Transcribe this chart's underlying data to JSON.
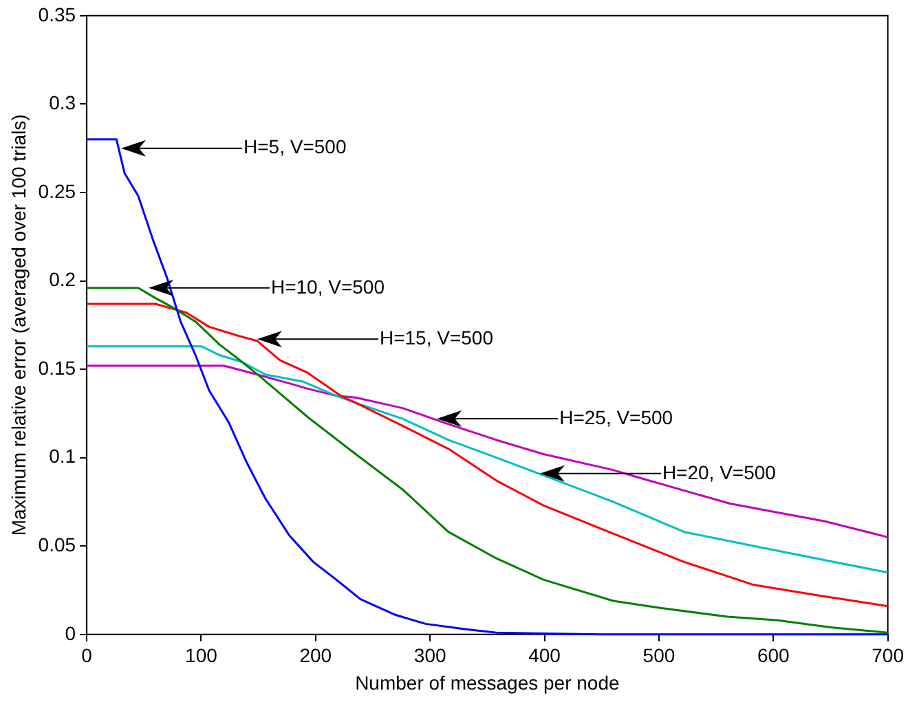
{
  "chart_data": {
    "type": "line",
    "xlabel": "Number of messages per node",
    "ylabel": "Maximum relative error (averaged over 100 trials)",
    "xlim": [
      0,
      700
    ],
    "xticks": [
      0,
      100,
      200,
      300,
      400,
      500,
      600,
      700
    ],
    "ylim": [
      0,
      0.35
    ],
    "yticks": [
      0,
      0.05,
      0.1,
      0.15,
      0.2,
      0.25,
      0.3,
      0.35
    ],
    "grid": false,
    "legend": false,
    "marker": "none",
    "line_style": "solid",
    "series": [
      {
        "color": "#0000ff",
        "x": [
          0,
          26,
          33,
          45,
          58,
          70,
          82,
          95,
          107,
          124,
          140,
          156,
          177,
          198,
          218,
          239,
          270,
          296,
          330,
          358,
          400,
          450,
          500,
          600,
          700
        ],
        "values": [
          0.28,
          0.28,
          0.261,
          0.248,
          0.223,
          0.202,
          0.177,
          0.158,
          0.138,
          0.12,
          0.097,
          0.077,
          0.056,
          0.041,
          0.031,
          0.02,
          0.011,
          0.006,
          0.003,
          0.001,
          0.0005,
          0,
          0,
          0,
          0
        ]
      },
      {
        "color": "#008000",
        "x": [
          0,
          45,
          58,
          75,
          95,
          116,
          136,
          153,
          193,
          235,
          276,
          316,
          358,
          399,
          460,
          501,
          560,
          604,
          650,
          700
        ],
        "values": [
          0.196,
          0.196,
          0.191,
          0.185,
          0.177,
          0.164,
          0.154,
          0.145,
          0.123,
          0.102,
          0.082,
          0.058,
          0.043,
          0.031,
          0.019,
          0.015,
          0.01,
          0.008,
          0.004,
          0.001
        ]
      },
      {
        "color": "#ff0000",
        "x": [
          0,
          60,
          87,
          107,
          132,
          149,
          169,
          193,
          222,
          235,
          276,
          316,
          358,
          399,
          460,
          522,
          583,
          640,
          700
        ],
        "values": [
          0.187,
          0.187,
          0.182,
          0.174,
          0.169,
          0.166,
          0.155,
          0.148,
          0.135,
          0.131,
          0.118,
          0.105,
          0.087,
          0.073,
          0.057,
          0.041,
          0.028,
          0.022,
          0.016
        ]
      },
      {
        "color": "#00bfbf",
        "x": [
          0,
          100,
          116,
          136,
          156,
          189,
          218,
          235,
          276,
          316,
          358,
          399,
          460,
          522,
          583,
          645,
          700
        ],
        "values": [
          0.163,
          0.163,
          0.158,
          0.154,
          0.147,
          0.143,
          0.135,
          0.131,
          0.122,
          0.11,
          0.1,
          0.09,
          0.075,
          0.058,
          0.05,
          0.042,
          0.035
        ]
      },
      {
        "color": "#bf00bf",
        "x": [
          0,
          120,
          149,
          177,
          193,
          218,
          235,
          276,
          316,
          358,
          399,
          460,
          481,
          562,
          645,
          700
        ],
        "values": [
          0.152,
          0.152,
          0.147,
          0.142,
          0.139,
          0.135,
          0.134,
          0.128,
          0.119,
          0.11,
          0.102,
          0.093,
          0.089,
          0.074,
          0.064,
          0.055
        ]
      }
    ],
    "annotations": [
      {
        "text": "H=5, V=500",
        "x": 30,
        "y": 0.275
      },
      {
        "text": "H=10, V=500",
        "x": 54,
        "y": 0.196
      },
      {
        "text": "H=15, V=500",
        "x": 149,
        "y": 0.167
      },
      {
        "text": "H=25, V=500",
        "x": 306,
        "y": 0.122
      },
      {
        "text": "H=20, V=500",
        "x": 396,
        "y": 0.091
      }
    ]
  }
}
